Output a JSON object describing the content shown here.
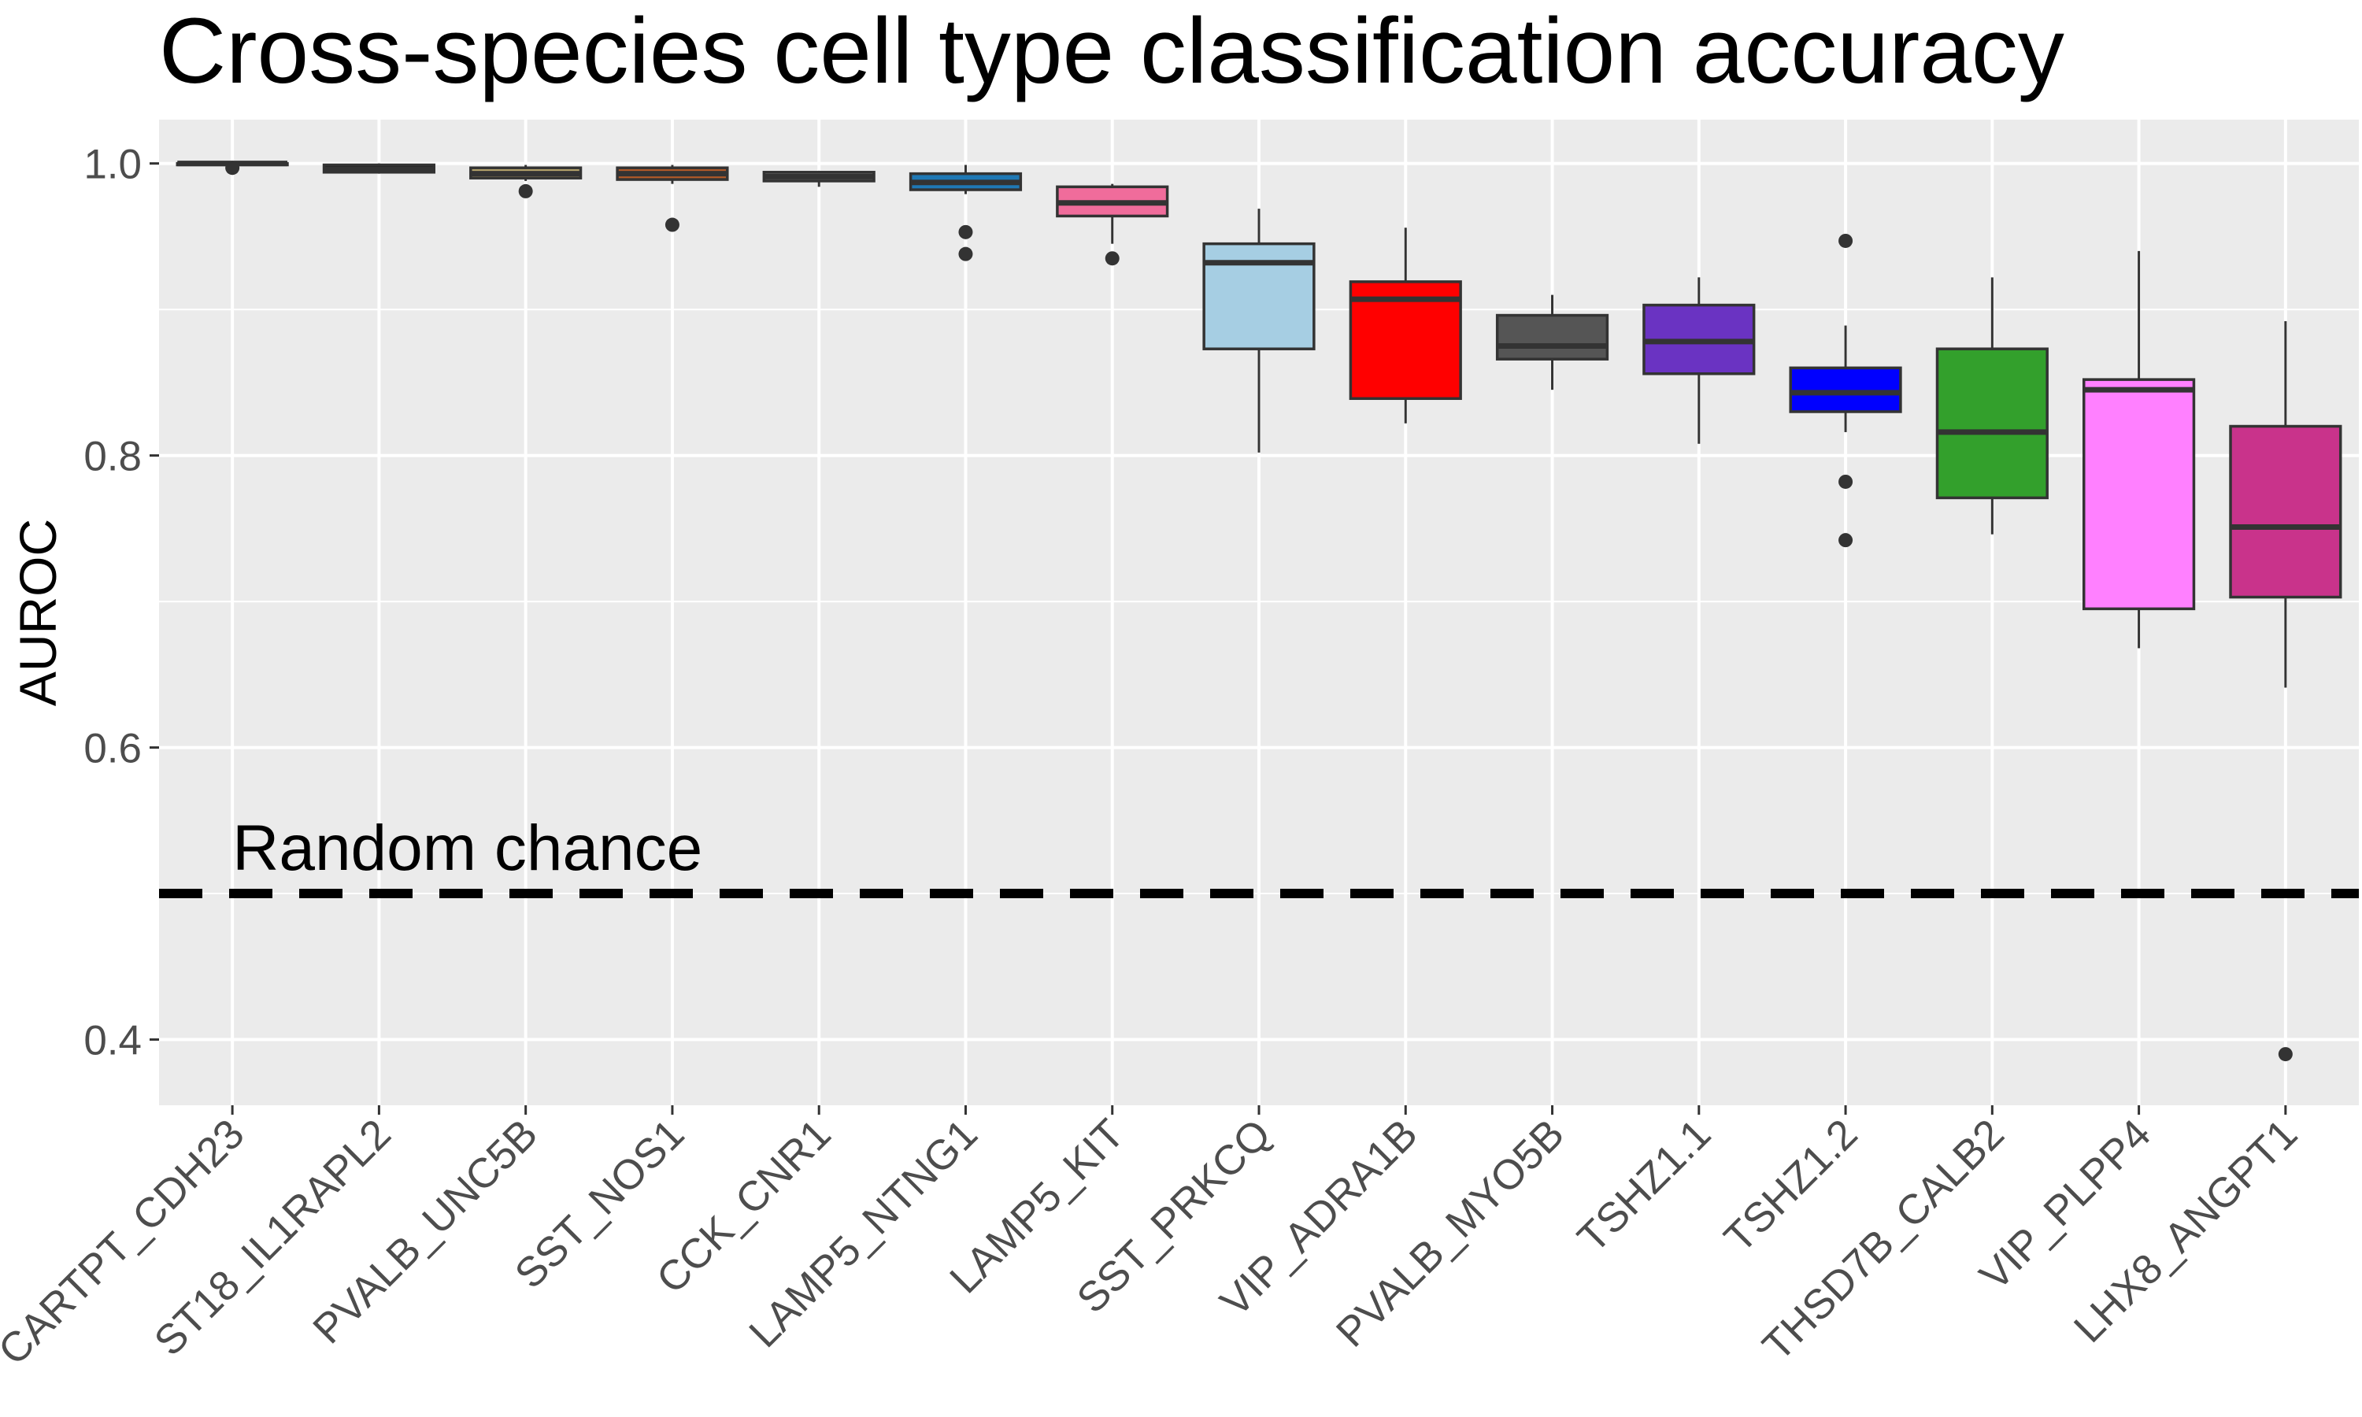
{
  "chart_data": {
    "type": "boxplot",
    "title": "Cross-species cell type classification accuracy",
    "ylabel": "AUROC",
    "xlabel": "",
    "ylim": [
      0.355,
      1.03
    ],
    "yticks": [
      0.4,
      0.6,
      0.8,
      1.0
    ],
    "ytick_labels": [
      "0.4",
      "0.6",
      "0.8",
      "1.0"
    ],
    "grid": true,
    "panel_background": "#ebebeb",
    "reference_line": {
      "y": 0.5,
      "style": "dashed",
      "color": "#000000",
      "label": "Random chance"
    },
    "categories": [
      "CARTPT_CDH23",
      "ST18_IL1RAPL2",
      "PVALB_UNC5B",
      "SST_NOS1",
      "CCK_CNR1",
      "LAMP5_NTNG1",
      "LAMP5_KIT",
      "SST_PRKCQ",
      "VIP_ADRA1B",
      "PVALB_MYO5B",
      "TSHZ1.1",
      "TSHZ1.2",
      "THSD7B_CALB2",
      "VIP_PLPP4",
      "LHX8_ANGPT1"
    ],
    "boxes": [
      {
        "category": "CARTPT_CDH23",
        "color": "#333333",
        "whisker_low": 0.999,
        "q1": 0.999,
        "median": 1.0,
        "q3": 1.0,
        "whisker_high": 1.0,
        "outliers": [
          0.997
        ]
      },
      {
        "category": "ST18_IL1RAPL2",
        "color": "#1a1a1a",
        "whisker_low": 0.993,
        "q1": 0.994,
        "median": 0.996,
        "q3": 0.999,
        "whisker_high": 1.0,
        "outliers": []
      },
      {
        "category": "PVALB_UNC5B",
        "color": "#b2a06a",
        "whisker_low": 0.988,
        "q1": 0.99,
        "median": 0.993,
        "q3": 0.997,
        "whisker_high": 0.999,
        "outliers": [
          0.981
        ]
      },
      {
        "category": "SST_NOS1",
        "color": "#b15928",
        "whisker_low": 0.986,
        "q1": 0.989,
        "median": 0.993,
        "q3": 0.997,
        "whisker_high": 0.999,
        "outliers": [
          0.958
        ]
      },
      {
        "category": "CCK_CNR1",
        "color": "#7f7f7f",
        "whisker_low": 0.984,
        "q1": 0.988,
        "median": 0.991,
        "q3": 0.994,
        "whisker_high": 0.995,
        "outliers": []
      },
      {
        "category": "LAMP5_NTNG1",
        "color": "#1f78b4",
        "whisker_low": 0.979,
        "q1": 0.982,
        "median": 0.987,
        "q3": 0.993,
        "whisker_high": 0.999,
        "outliers": [
          0.953,
          0.938
        ]
      },
      {
        "category": "LAMP5_KIT",
        "color": "#f06c9b",
        "whisker_low": 0.945,
        "q1": 0.964,
        "median": 0.973,
        "q3": 0.984,
        "whisker_high": 0.986,
        "outliers": [
          0.935
        ]
      },
      {
        "category": "SST_PRKCQ",
        "color": "#a6cee3",
        "whisker_low": 0.802,
        "q1": 0.873,
        "median": 0.932,
        "q3": 0.945,
        "whisker_high": 0.969,
        "outliers": []
      },
      {
        "category": "VIP_ADRA1B",
        "color": "#ff0000",
        "whisker_low": 0.822,
        "q1": 0.839,
        "median": 0.907,
        "q3": 0.919,
        "whisker_high": 0.956,
        "outliers": []
      },
      {
        "category": "PVALB_MYO5B",
        "color": "#555555",
        "whisker_low": 0.845,
        "q1": 0.866,
        "median": 0.875,
        "q3": 0.896,
        "whisker_high": 0.91,
        "outliers": []
      },
      {
        "category": "TSHZ1.1",
        "color": "#6a33c2",
        "whisker_low": 0.808,
        "q1": 0.856,
        "median": 0.878,
        "q3": 0.903,
        "whisker_high": 0.922,
        "outliers": []
      },
      {
        "category": "TSHZ1.2",
        "color": "#0000ff",
        "whisker_low": 0.816,
        "q1": 0.83,
        "median": 0.843,
        "q3": 0.86,
        "whisker_high": 0.889,
        "outliers": [
          0.947,
          0.782,
          0.742
        ]
      },
      {
        "category": "THSD7B_CALB2",
        "color": "#33a02c",
        "whisker_low": 0.746,
        "q1": 0.771,
        "median": 0.816,
        "q3": 0.873,
        "whisker_high": 0.922,
        "outliers": []
      },
      {
        "category": "VIP_PLPP4",
        "color": "#ff80ff",
        "whisker_low": 0.668,
        "q1": 0.695,
        "median": 0.845,
        "q3": 0.852,
        "whisker_high": 0.94,
        "outliers": []
      },
      {
        "category": "LHX8_ANGPT1",
        "color": "#c9338b",
        "whisker_low": 0.641,
        "q1": 0.703,
        "median": 0.751,
        "q3": 0.82,
        "whisker_high": 0.892,
        "outliers": [
          0.39
        ]
      }
    ]
  }
}
